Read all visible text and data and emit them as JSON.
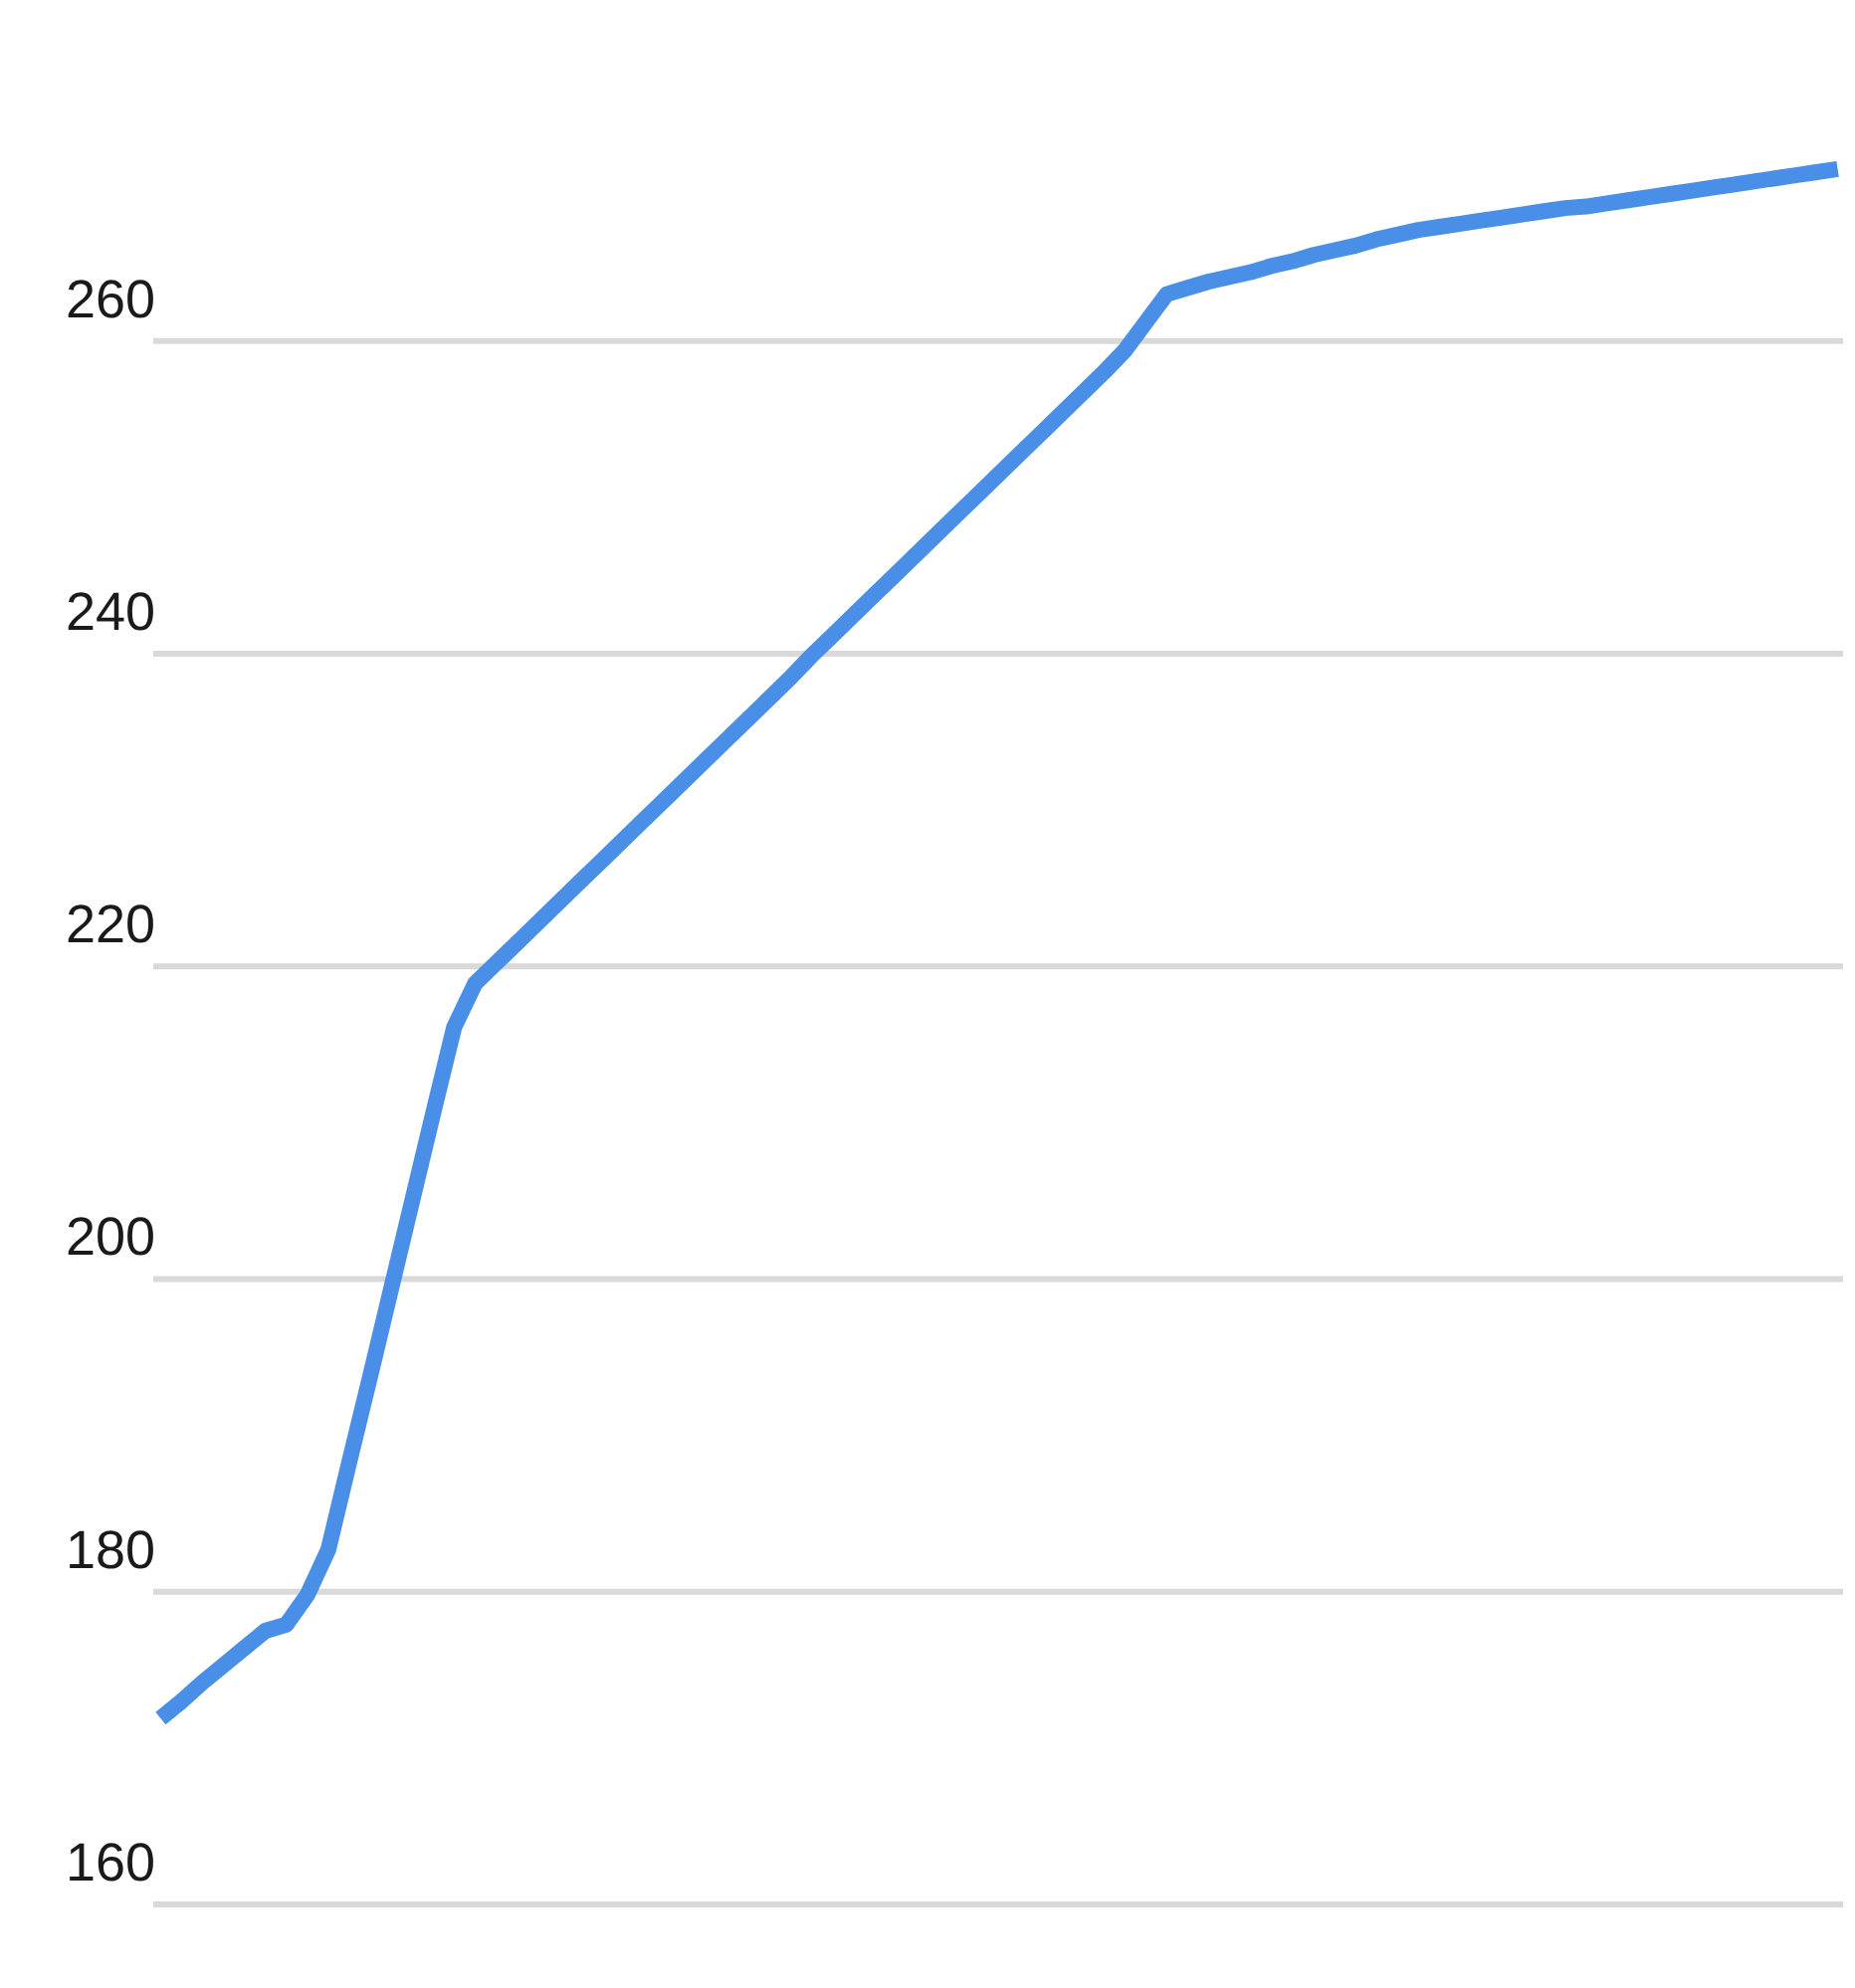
{
  "chart_data": {
    "type": "line",
    "categories": [
      null,
      null,
      null,
      null,
      null,
      null,
      null,
      null,
      null,
      null,
      null,
      null,
      null,
      null,
      null,
      null,
      null,
      null,
      null,
      null,
      null,
      null,
      null,
      null,
      null,
      null,
      null,
      null,
      null,
      null,
      null,
      null,
      null,
      null,
      null,
      null,
      null,
      null,
      null,
      null,
      null,
      null,
      null,
      null,
      null,
      null,
      null,
      null,
      null,
      null,
      null,
      null,
      null,
      null,
      null,
      null,
      null,
      null,
      null,
      null,
      null,
      null,
      null,
      null,
      null,
      null,
      null,
      null,
      null,
      null,
      null,
      null,
      null,
      null,
      null,
      null,
      null,
      null,
      null,
      null,
      null
    ],
    "series": [
      {
        "color": "#4a8fe7",
        "values": [
          171.9,
          173.0,
          174.2,
          175.3,
          176.4,
          177.5,
          177.9,
          179.8,
          182.7,
          188.3,
          193.8,
          199.4,
          205.0,
          210.6,
          216.1,
          218.9,
          220.2,
          221.5,
          222.8,
          224.1,
          225.4,
          226.7,
          228.0,
          229.3,
          230.6,
          231.9,
          233.2,
          234.5,
          235.8,
          237.1,
          238.4,
          239.8,
          241.1,
          242.4,
          243.7,
          245.0,
          246.3,
          247.6,
          248.9,
          250.2,
          251.5,
          252.8,
          254.1,
          255.4,
          256.7,
          258.0,
          259.4,
          261.2,
          263.0,
          263.4,
          263.8,
          264.1,
          264.4,
          264.8,
          265.1,
          265.5,
          265.8,
          266.1,
          266.5,
          266.8,
          267.1,
          267.3,
          267.5,
          267.7,
          267.9,
          268.1,
          268.3,
          268.5,
          268.6,
          268.8,
          269.0,
          269.2,
          269.4,
          269.6,
          269.8,
          270.0,
          270.2,
          270.4,
          270.6,
          270.8,
          271.0
        ]
      }
    ],
    "ylim": [
      160,
      282
    ],
    "yticks": [
      160,
      180,
      200,
      220,
      240,
      260
    ],
    "grid": "y",
    "tick_labels": "y"
  }
}
